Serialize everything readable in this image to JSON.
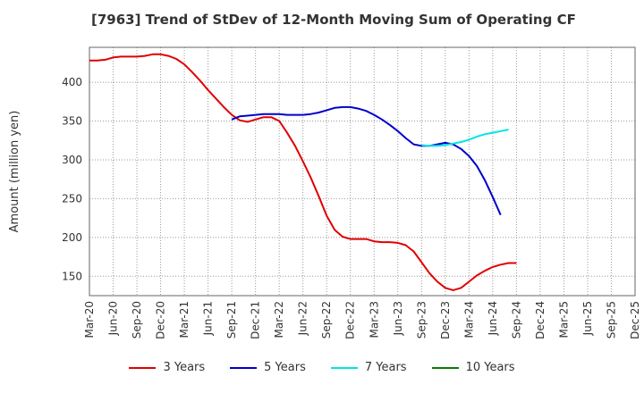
{
  "chart_data": {
    "type": "line",
    "title": "[7963]  Trend of StDev of 12-Month Moving Sum of Operating CF",
    "ylabel": "Amount (million yen)",
    "xlabel": "",
    "ylim": [
      125,
      445
    ],
    "yticks": [
      150,
      200,
      250,
      300,
      350,
      400
    ],
    "xticks": [
      "Mar-20",
      "Jun-20",
      "Sep-20",
      "Dec-20",
      "Mar-21",
      "Jun-21",
      "Sep-21",
      "Dec-21",
      "Mar-22",
      "Jun-22",
      "Sep-22",
      "Dec-22",
      "Mar-23",
      "Jun-23",
      "Sep-23",
      "Dec-23",
      "Mar-24",
      "Jun-24",
      "Sep-24",
      "Dec-24",
      "Mar-25",
      "Jun-25",
      "Sep-25",
      "Dec-25"
    ],
    "grid": true,
    "legend_position": "bottom",
    "series": [
      {
        "name": "3 Years",
        "color": "#e00000",
        "values": [
          428,
          428,
          429,
          432,
          433,
          433,
          433,
          434,
          436,
          436,
          434,
          430,
          423,
          413,
          402,
          390,
          379,
          368,
          358,
          351,
          349,
          352,
          355,
          355,
          350,
          335,
          318,
          298,
          277,
          253,
          228,
          210,
          201,
          198,
          198,
          198,
          195,
          194,
          194,
          193,
          190,
          182,
          168,
          154,
          143,
          135,
          132,
          135,
          143,
          151,
          157,
          162,
          165,
          167,
          167
        ]
      },
      {
        "name": "5 Years",
        "color": "#0000cc",
        "values": [
          null,
          null,
          null,
          null,
          null,
          null,
          null,
          null,
          null,
          null,
          null,
          null,
          null,
          null,
          null,
          null,
          null,
          null,
          352,
          356,
          357,
          358,
          359,
          359,
          359,
          358,
          358,
          358,
          359,
          361,
          364,
          367,
          368,
          368,
          366,
          363,
          358,
          352,
          345,
          337,
          328,
          320,
          318,
          318,
          320,
          322,
          320,
          314,
          305,
          292,
          274,
          252,
          229
        ]
      },
      {
        "name": "7 Years",
        "color": "#00e5e5",
        "values": [
          null,
          null,
          null,
          null,
          null,
          null,
          null,
          null,
          null,
          null,
          null,
          null,
          null,
          null,
          null,
          null,
          null,
          null,
          null,
          null,
          null,
          null,
          null,
          null,
          null,
          null,
          null,
          null,
          null,
          null,
          null,
          null,
          null,
          null,
          null,
          null,
          null,
          null,
          null,
          null,
          null,
          null,
          319,
          318,
          318,
          319,
          321,
          323,
          326,
          330,
          333,
          335,
          337,
          339
        ]
      },
      {
        "name": "10 Years",
        "color": "#008000",
        "values": []
      }
    ]
  }
}
